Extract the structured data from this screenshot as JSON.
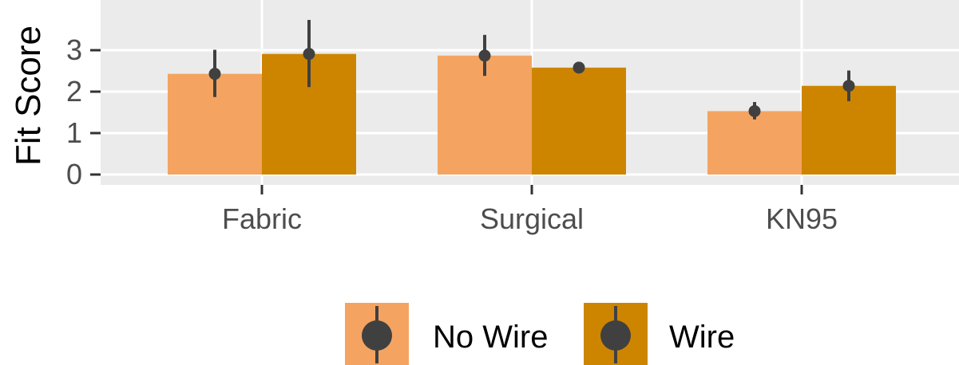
{
  "chart_data": {
    "type": "bar",
    "title": "",
    "xlabel": "",
    "ylabel": "Fit Score",
    "ylim": [
      -0.2,
      3.9
    ],
    "yticks": [
      0,
      1,
      2,
      3
    ],
    "ytick_labels": [
      "0",
      "1",
      "2",
      "3"
    ],
    "grid": true,
    "legend_position": "bottom",
    "categories": [
      "Fabric",
      "Surgical",
      "KN95"
    ],
    "series": [
      {
        "name": "No Wire",
        "color": "#F4A460",
        "values": [
          2.43,
          2.87,
          1.53
        ],
        "err_low": [
          1.87,
          2.38,
          1.33
        ],
        "err_high": [
          3.01,
          3.37,
          1.75
        ]
      },
      {
        "name": "Wire",
        "color": "#CD8500",
        "values": [
          2.91,
          2.58,
          2.14
        ],
        "err_low": [
          2.11,
          2.52,
          1.77
        ],
        "err_high": [
          3.73,
          2.64,
          2.51
        ]
      }
    ]
  }
}
